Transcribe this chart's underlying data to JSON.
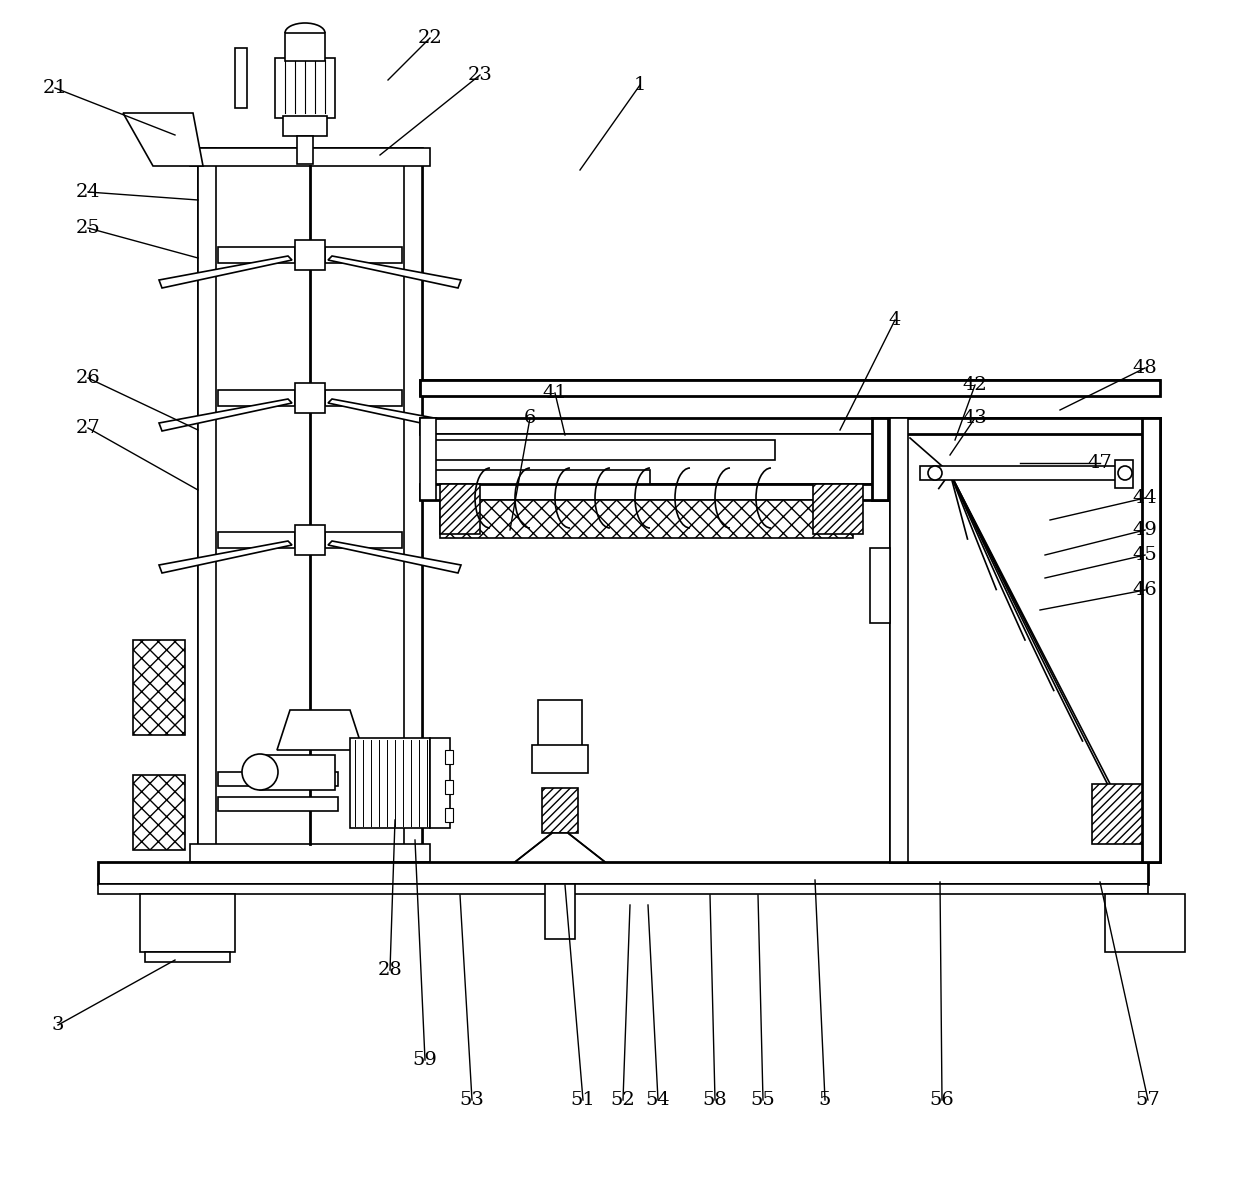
{
  "bg_color": "#ffffff",
  "line_color": "#000000",
  "fig_width": 12.4,
  "fig_height": 11.84,
  "labels_data": [
    [
      "1",
      640,
      85,
      580,
      170
    ],
    [
      "3",
      58,
      1025,
      175,
      960
    ],
    [
      "4",
      895,
      320,
      840,
      430
    ],
    [
      "5",
      825,
      1100,
      815,
      880
    ],
    [
      "6",
      530,
      418,
      510,
      530
    ],
    [
      "21",
      55,
      88,
      175,
      135
    ],
    [
      "22",
      430,
      38,
      388,
      80
    ],
    [
      "23",
      480,
      75,
      380,
      155
    ],
    [
      "24",
      88,
      192,
      198,
      200
    ],
    [
      "25",
      88,
      228,
      198,
      258
    ],
    [
      "26",
      88,
      378,
      198,
      430
    ],
    [
      "27",
      88,
      428,
      198,
      490
    ],
    [
      "28",
      390,
      970,
      395,
      820
    ],
    [
      "41",
      555,
      393,
      565,
      435
    ],
    [
      "42",
      975,
      385,
      955,
      440
    ],
    [
      "43",
      975,
      418,
      950,
      455
    ],
    [
      "44",
      1145,
      498,
      1050,
      520
    ],
    [
      "45",
      1145,
      555,
      1045,
      578
    ],
    [
      "46",
      1145,
      590,
      1040,
      610
    ],
    [
      "47",
      1100,
      463,
      1020,
      463
    ],
    [
      "48",
      1145,
      368,
      1060,
      410
    ],
    [
      "49",
      1145,
      530,
      1045,
      555
    ],
    [
      "51",
      583,
      1100,
      565,
      885
    ],
    [
      "52",
      623,
      1100,
      630,
      905
    ],
    [
      "53",
      472,
      1100,
      460,
      895
    ],
    [
      "54",
      658,
      1100,
      648,
      905
    ],
    [
      "55",
      763,
      1100,
      758,
      895
    ],
    [
      "56",
      942,
      1100,
      940,
      882
    ],
    [
      "57",
      1148,
      1100,
      1100,
      882
    ],
    [
      "58",
      715,
      1100,
      710,
      895
    ],
    [
      "59",
      425,
      1060,
      415,
      840
    ]
  ]
}
